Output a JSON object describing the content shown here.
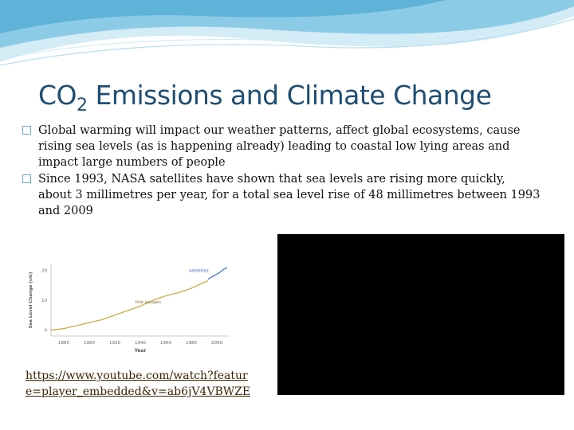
{
  "slide": {
    "title_main": "CO",
    "title_sub": "2",
    "title_rest": " Emissions and Climate Change",
    "bullets": [
      "Global warming will impact our weather patterns, affect global ecosystems, cause rising sea levels (as is happening already) leading to coastal low lying areas and impact large numbers of people",
      "Since 1993, NASA satellites have shown that sea levels are rising more quickly, about 3 millimetres per year, for a total sea level rise of 48 millimetres between 1993 and 2009"
    ],
    "link_text": "https://www.youtube.com/watch?feature=player_embedded&v=ab6jV4VBWZE",
    "colors": {
      "title": "#1f4e73",
      "accent": "#5fa8cc",
      "video": "#000000"
    }
  },
  "chart_data": {
    "type": "line",
    "title": "",
    "xlabel": "Year",
    "ylabel": "Sea Level Change (cm)",
    "x_ticks": [
      "1880",
      "1900",
      "1920",
      "1940",
      "1960",
      "1980",
      "2000"
    ],
    "y_ticks": [
      "0",
      "10",
      "20"
    ],
    "xlim": [
      1870,
      2010
    ],
    "ylim": [
      -2,
      22
    ],
    "annotations": [
      "tide gauges",
      "satellites"
    ],
    "series": [
      {
        "name": "tide gauges",
        "x": [
          1870,
          1880,
          1890,
          1900,
          1910,
          1920,
          1930,
          1940,
          1950,
          1960,
          1970,
          1980,
          1990,
          1993
        ],
        "y": [
          0,
          0.5,
          1.5,
          2.5,
          3.5,
          5,
          6.5,
          8,
          10,
          11.5,
          12.5,
          14,
          16,
          16.5
        ]
      },
      {
        "name": "satellites",
        "x": [
          1993,
          1996,
          1999,
          2002,
          2005,
          2008
        ],
        "y": [
          17,
          17.8,
          18.5,
          19.2,
          20.2,
          21
        ]
      }
    ]
  }
}
